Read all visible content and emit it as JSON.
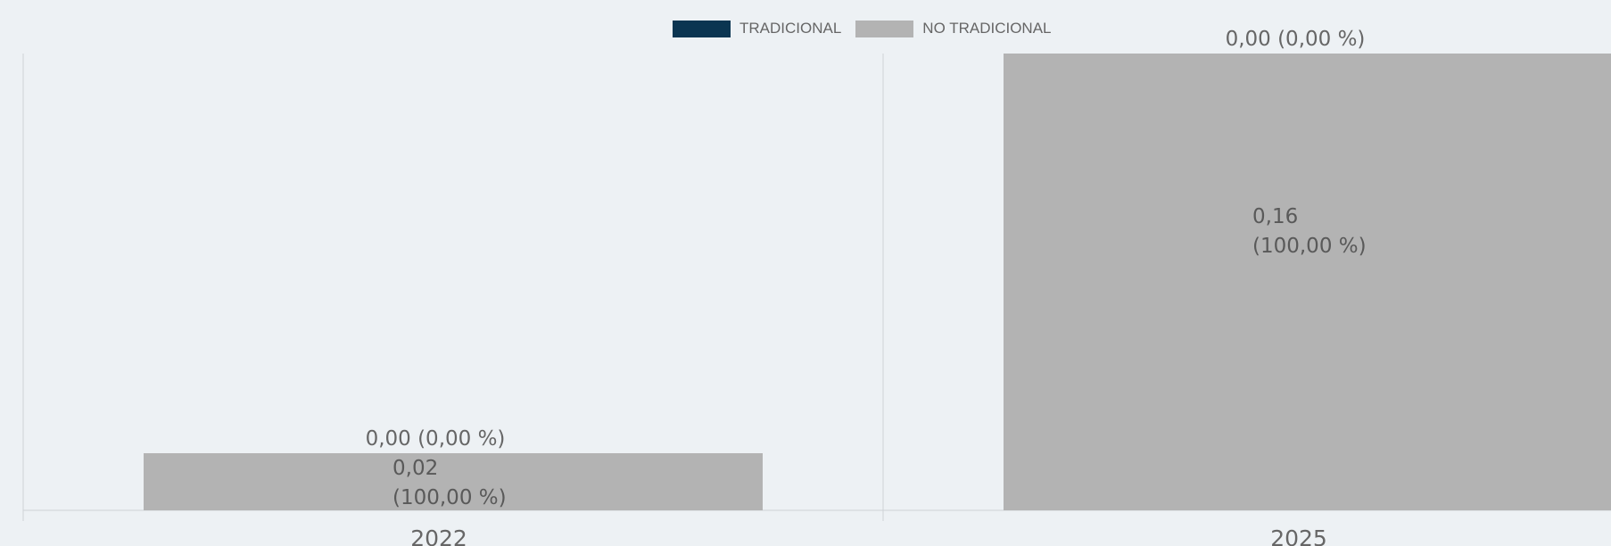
{
  "chart_data": {
    "type": "bar",
    "stacked": true,
    "categories": [
      "2022",
      "2025"
    ],
    "series": [
      {
        "name": "TRADICIONAL",
        "color": "#0b3551",
        "values": [
          0.0,
          0.0
        ],
        "labels": [
          "0,00 (0,00 %)",
          "0,00 (0,00 %)"
        ]
      },
      {
        "name": "NO TRADICIONAL",
        "color": "#b3b3b3",
        "values": [
          0.02,
          0.16
        ],
        "labels": [
          [
            "0,02",
            "(100,00 %)"
          ],
          [
            "0,16",
            "(100,00 %)"
          ]
        ]
      }
    ],
    "ylim": [
      0,
      0.16
    ],
    "grid": false,
    "legend_position": "top-center",
    "title": "",
    "xlabel": "",
    "ylabel": ""
  }
}
